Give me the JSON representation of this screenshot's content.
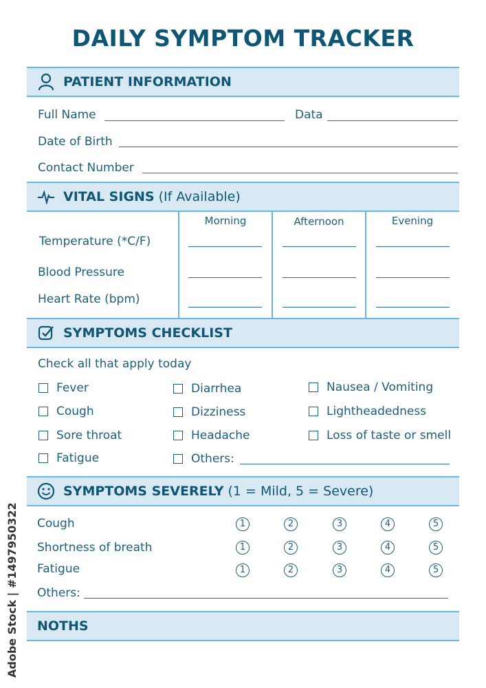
{
  "title": "DAILY SYMPTOM TRACKER",
  "patient": {
    "header": "PATIENT INFORMATION",
    "icon": "person-icon",
    "full_name": "Full Name",
    "data": "Data",
    "dob": "Date of Birth",
    "contact": "Contact Number"
  },
  "vitals": {
    "header": "VITAL SIGNS",
    "subheader": "(If Available)",
    "icon": "heartbeat-icon",
    "columns": [
      "Morning",
      "Afternoon",
      "Evening"
    ],
    "rows": [
      "Temperature (*C/F)",
      "Blood Pressure",
      "Heart Rate (bpm)"
    ]
  },
  "checklist": {
    "header": "SYMPTOMS CHECKLIST",
    "icon": "checkbox-icon",
    "instruction": "Check all that apply today",
    "col1": [
      "Fever",
      "Cough",
      "Sore throat",
      "Fatigue"
    ],
    "col2": [
      "Diarrhea",
      "Dizziness",
      "Headache",
      "Others:"
    ],
    "col3": [
      "Nausea / Vomiting",
      "Lightheadedness",
      "Loss of taste or smell"
    ]
  },
  "severity": {
    "header": "SYMPTOMS SEVERELY",
    "subheader": "(1 = Mild, 5 = Severe)",
    "icon": "smiley-icon",
    "rows": [
      "Cough",
      "Shortness of breath",
      "Fatigue"
    ],
    "scale": [
      "1",
      "2",
      "3",
      "4",
      "5"
    ],
    "others": "Others:"
  },
  "notes": {
    "header": "NOTHS"
  },
  "watermark": "Adobe Stock | #1497950322",
  "colors": {
    "title": "#0f5675",
    "header_bg": "#d9e9f3",
    "border": "#62b7e8",
    "text": "#1c5f7c"
  }
}
